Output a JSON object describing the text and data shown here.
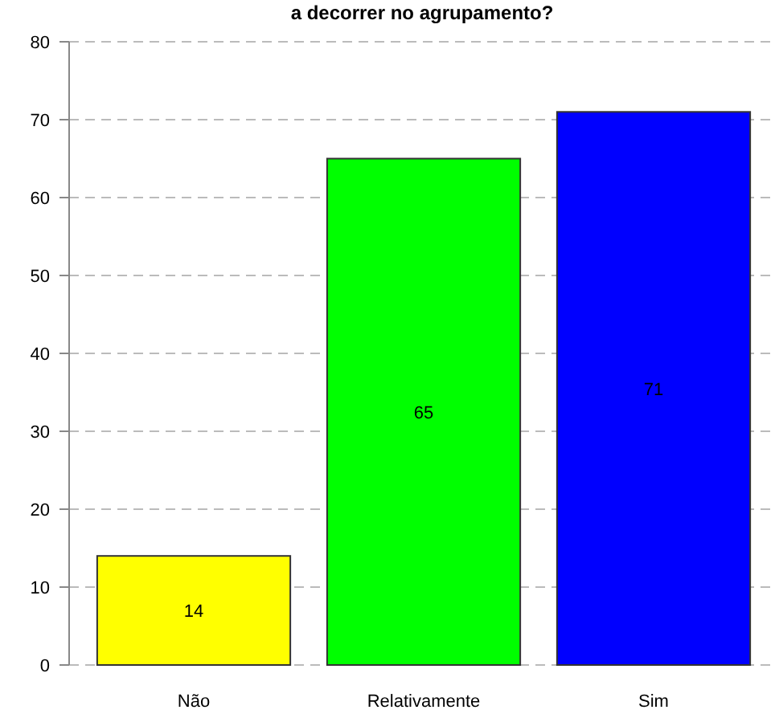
{
  "chart_data": {
    "type": "bar",
    "title": "a decorrer no agrupamento?",
    "categories": [
      "Não",
      "Relativamente",
      "Sim"
    ],
    "values": [
      14,
      65,
      71
    ],
    "colors": [
      "#ffff00",
      "#00ff00",
      "#0000ff"
    ],
    "ylim": [
      0,
      80
    ],
    "yticks": [
      0,
      10,
      20,
      30,
      40,
      50,
      60,
      70,
      80
    ],
    "grid": "y",
    "data_labels": true
  }
}
